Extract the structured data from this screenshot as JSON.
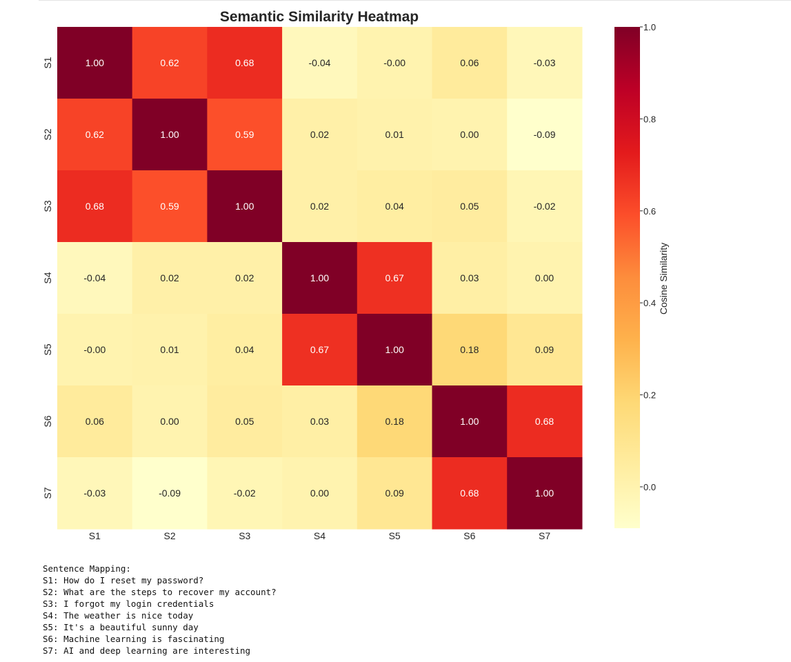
{
  "chart_data": {
    "type": "heatmap",
    "title": "Semantic Similarity Heatmap",
    "x_labels": [
      "S1",
      "S2",
      "S3",
      "S4",
      "S5",
      "S6",
      "S7"
    ],
    "y_labels": [
      "S1",
      "S2",
      "S3",
      "S4",
      "S5",
      "S6",
      "S7"
    ],
    "values": [
      [
        1.0,
        0.62,
        0.68,
        -0.04,
        -0.0,
        0.06,
        -0.03
      ],
      [
        0.62,
        1.0,
        0.59,
        0.02,
        0.01,
        0.0,
        -0.09
      ],
      [
        0.68,
        0.59,
        1.0,
        0.02,
        0.04,
        0.05,
        -0.02
      ],
      [
        -0.04,
        0.02,
        0.02,
        1.0,
        0.67,
        0.03,
        0.0
      ],
      [
        -0.0,
        0.01,
        0.04,
        0.67,
        1.0,
        0.18,
        0.09
      ],
      [
        0.06,
        0.0,
        0.05,
        0.03,
        0.18,
        1.0,
        0.68
      ],
      [
        -0.03,
        -0.09,
        -0.02,
        0.0,
        0.09,
        0.68,
        1.0
      ]
    ],
    "cell_labels": [
      [
        "1.00",
        "0.62",
        "0.68",
        "-0.04",
        "-0.00",
        "0.06",
        "-0.03"
      ],
      [
        "0.62",
        "1.00",
        "0.59",
        "0.02",
        "0.01",
        "0.00",
        "-0.09"
      ],
      [
        "0.68",
        "0.59",
        "1.00",
        "0.02",
        "0.04",
        "0.05",
        "-0.02"
      ],
      [
        "-0.04",
        "0.02",
        "0.02",
        "1.00",
        "0.67",
        "0.03",
        "0.00"
      ],
      [
        "-0.00",
        "0.01",
        "0.04",
        "0.67",
        "1.00",
        "0.18",
        "0.09"
      ],
      [
        "0.06",
        "0.00",
        "0.05",
        "0.03",
        "0.18",
        "1.00",
        "0.68"
      ],
      [
        "-0.03",
        "-0.09",
        "-0.02",
        "0.00",
        "0.09",
        "0.68",
        "1.00"
      ]
    ],
    "colorscale": "YlOrRd",
    "colorbar": {
      "label": "Cosine Similarity",
      "min": -0.09,
      "max": 1.0,
      "ticks": [
        0.0,
        0.2,
        0.4,
        0.6,
        0.8,
        1.0
      ],
      "tick_labels": [
        "0.0",
        "0.2",
        "0.4",
        "0.6",
        "0.8",
        "1.0"
      ]
    },
    "grid": false
  },
  "mapping": {
    "lines": [
      "Sentence Mapping:",
      "S1: How do I reset my password?",
      "S2: What are the steps to recover my account?",
      "S3: I forgot my login credentials",
      "S4: The weather is nice today",
      "S5: It's a beautiful sunny day",
      "S6: Machine learning is fascinating",
      "S7: AI and deep learning are interesting"
    ]
  }
}
